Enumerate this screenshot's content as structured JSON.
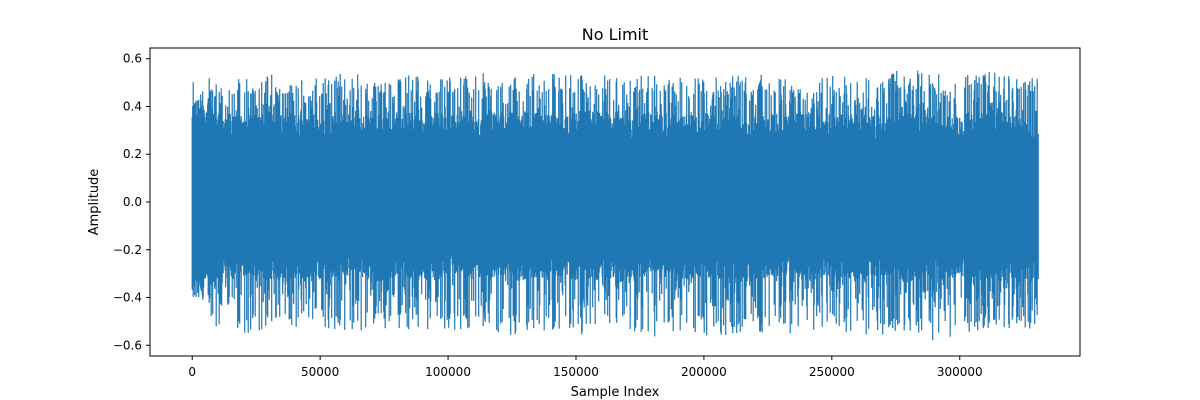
{
  "chart_data": {
    "type": "line",
    "title": "No Limit",
    "xlabel": "Sample Index",
    "ylabel": "Amplitude",
    "xlim": [
      -16500,
      347000
    ],
    "ylim": [
      -0.645,
      0.645
    ],
    "xticks": [
      0,
      50000,
      100000,
      150000,
      200000,
      250000,
      300000
    ],
    "xtick_labels": [
      "0",
      "50000",
      "100000",
      "150000",
      "200000",
      "250000",
      "300000"
    ],
    "yticks": [
      -0.6,
      -0.4,
      -0.2,
      0.0,
      0.2,
      0.4,
      0.6
    ],
    "ytick_labels": [
      "−0.6",
      "−0.4",
      "−0.2",
      "0.0",
      "0.2",
      "0.4",
      "0.6"
    ],
    "grid": false,
    "series": [
      {
        "color": "#1f77b4",
        "x_start": 0,
        "x_end": 330750,
        "envelope": {
          "x": [
            0,
            10000,
            20000,
            30000,
            40000,
            50000,
            60000,
            70000,
            80000,
            90000,
            100000,
            110000,
            120000,
            130000,
            140000,
            150000,
            160000,
            170000,
            180000,
            190000,
            200000,
            210000,
            220000,
            230000,
            240000,
            250000,
            260000,
            270000,
            280000,
            290000,
            300000,
            310000,
            320000,
            330750
          ],
          "max": [
            0.51,
            0.53,
            0.53,
            0.54,
            0.51,
            0.53,
            0.55,
            0.53,
            0.53,
            0.54,
            0.53,
            0.54,
            0.54,
            0.53,
            0.55,
            0.53,
            0.54,
            0.53,
            0.54,
            0.53,
            0.52,
            0.53,
            0.54,
            0.52,
            0.53,
            0.53,
            0.53,
            0.54,
            0.56,
            0.55,
            0.53,
            0.55,
            0.53,
            0.55
          ],
          "min": [
            -0.41,
            -0.53,
            -0.55,
            -0.54,
            -0.53,
            -0.52,
            -0.57,
            -0.53,
            -0.54,
            -0.55,
            -0.54,
            -0.53,
            -0.56,
            -0.55,
            -0.54,
            -0.56,
            -0.54,
            -0.53,
            -0.58,
            -0.55,
            -0.56,
            -0.56,
            -0.54,
            -0.56,
            -0.55,
            -0.54,
            -0.56,
            -0.58,
            -0.55,
            -0.59,
            -0.55,
            -0.54,
            -0.53,
            -0.53
          ],
          "core_max": [
            0.4,
            0.36,
            0.33,
            0.35,
            0.34,
            0.32,
            0.34,
            0.33,
            0.35,
            0.32,
            0.34,
            0.33,
            0.35,
            0.34,
            0.33,
            0.35,
            0.34,
            0.32,
            0.35,
            0.33,
            0.34,
            0.33,
            0.32,
            0.34,
            0.35,
            0.33,
            0.34,
            0.32,
            0.35,
            0.34,
            0.33,
            0.34,
            0.35,
            0.3
          ],
          "core_min": [
            -0.37,
            -0.3,
            -0.28,
            -0.31,
            -0.29,
            -0.3,
            -0.28,
            -0.31,
            -0.29,
            -0.3,
            -0.27,
            -0.3,
            -0.29,
            -0.31,
            -0.28,
            -0.3,
            -0.29,
            -0.31,
            -0.28,
            -0.3,
            -0.29,
            -0.3,
            -0.31,
            -0.28,
            -0.3,
            -0.29,
            -0.3,
            -0.28,
            -0.31,
            -0.3,
            -0.29,
            -0.3,
            -0.31,
            -0.3
          ]
        }
      }
    ]
  }
}
